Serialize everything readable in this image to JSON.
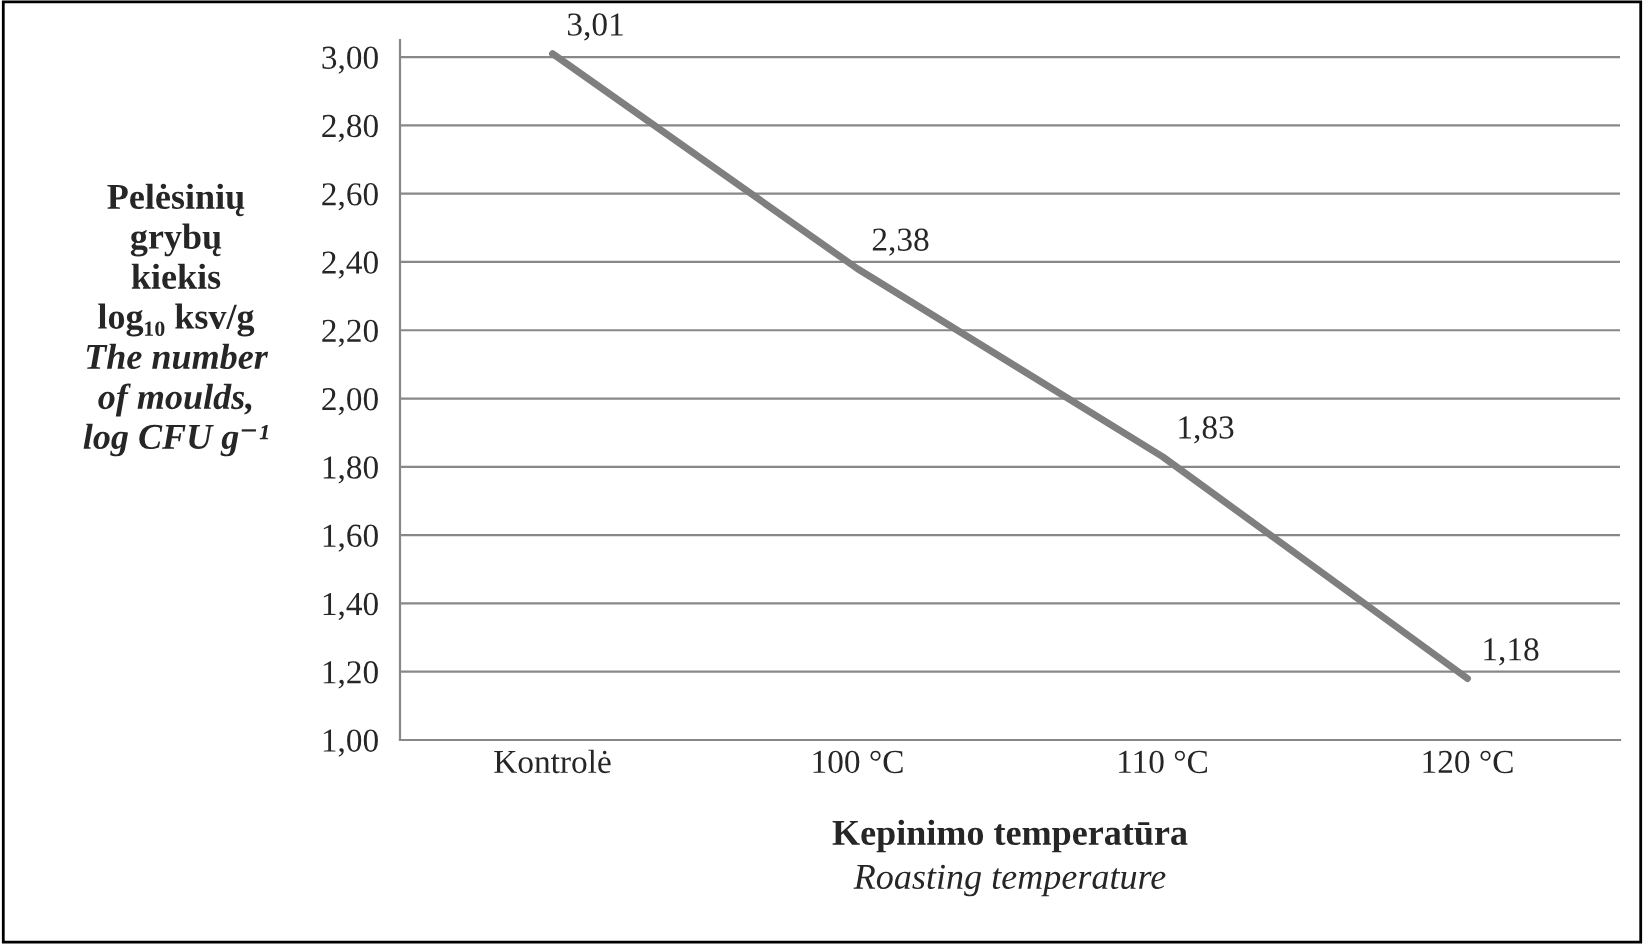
{
  "chart_data": {
    "type": "line",
    "categories": [
      "Kontrolė",
      "100 °C",
      "110 °C",
      "120 °C"
    ],
    "series": [
      {
        "color": "#7f7f7f",
        "values": [
          3.01,
          2.38,
          1.83,
          1.18
        ],
        "value_labels": [
          "3,01",
          "2,38",
          "1,83",
          "1,18"
        ]
      }
    ],
    "ylim": [
      1.0,
      3.05
    ],
    "yticks": [
      {
        "value": 1.0,
        "label": "1,00"
      },
      {
        "value": 1.2,
        "label": "1,20"
      },
      {
        "value": 1.4,
        "label": "1,40"
      },
      {
        "value": 1.6,
        "label": "1,60"
      },
      {
        "value": 1.8,
        "label": "1,80"
      },
      {
        "value": 2.0,
        "label": "2,00"
      },
      {
        "value": 2.2,
        "label": "2,20"
      },
      {
        "value": 2.4,
        "label": "2,40"
      },
      {
        "value": 2.6,
        "label": "2,60"
      },
      {
        "value": 2.8,
        "label": "2,80"
      },
      {
        "value": 3.0,
        "label": "3,00"
      }
    ],
    "xlabel": "Kepinimo temperatūra\n\nRoasting temperature",
    "ylabel": "Pelėsinių\ngrybų\nkiekis\nlog₁₀ ksv/g\n\nThe number\nof moulds,\nlog CFU g⁻¹",
    "grid": "y",
    "legend": false,
    "marker": "none",
    "line_style": "solid"
  }
}
